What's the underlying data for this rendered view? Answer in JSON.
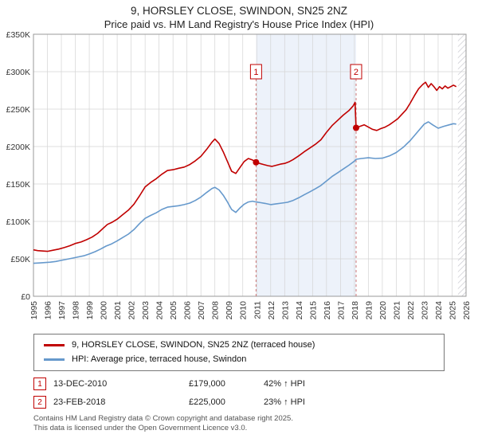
{
  "title": "9, HORSLEY CLOSE, SWINDON, SN25 2NZ",
  "subtitle": "Price paid vs. HM Land Registry's House Price Index (HPI)",
  "chart_data": {
    "type": "line",
    "x_range": [
      1995,
      2026
    ],
    "y_range": [
      0,
      350000
    ],
    "grid": true,
    "legend_position": "bottom",
    "y_ticks": [
      "£0",
      "£50K",
      "£100K",
      "£150K",
      "£200K",
      "£250K",
      "£300K",
      "£350K"
    ],
    "x_ticks": [
      1995,
      1996,
      1997,
      1998,
      1999,
      2000,
      2001,
      2002,
      2003,
      2004,
      2005,
      2006,
      2007,
      2008,
      2009,
      2010,
      2011,
      2012,
      2013,
      2014,
      2015,
      2016,
      2017,
      2018,
      2019,
      2020,
      2021,
      2022,
      2023,
      2024,
      2025,
      2026
    ],
    "series": [
      {
        "name": "9, HORSLEY CLOSE, SWINDON, SN25 2NZ (terraced house)",
        "color": "#c00000",
        "points": [
          [
            1995.0,
            62000
          ],
          [
            1995.3,
            61000
          ],
          [
            1995.6,
            60500
          ],
          [
            1996.0,
            60000
          ],
          [
            1996.4,
            61500
          ],
          [
            1996.8,
            63000
          ],
          [
            1997.2,
            65000
          ],
          [
            1997.6,
            67500
          ],
          [
            1998.0,
            70500
          ],
          [
            1998.4,
            72500
          ],
          [
            1998.8,
            75500
          ],
          [
            1999.2,
            79000
          ],
          [
            1999.6,
            84000
          ],
          [
            2000.0,
            91000
          ],
          [
            2000.3,
            96000
          ],
          [
            2000.6,
            98500
          ],
          [
            2001.0,
            103000
          ],
          [
            2001.4,
            109000
          ],
          [
            2001.8,
            115000
          ],
          [
            2002.2,
            123000
          ],
          [
            2002.6,
            134000
          ],
          [
            2003.0,
            146000
          ],
          [
            2003.4,
            152000
          ],
          [
            2003.8,
            157000
          ],
          [
            2004.2,
            163000
          ],
          [
            2004.6,
            168000
          ],
          [
            2005.0,
            169000
          ],
          [
            2005.4,
            171000
          ],
          [
            2005.8,
            172500
          ],
          [
            2006.2,
            176000
          ],
          [
            2006.6,
            181000
          ],
          [
            2007.0,
            187000
          ],
          [
            2007.4,
            196000
          ],
          [
            2007.8,
            206000
          ],
          [
            2008.0,
            210000
          ],
          [
            2008.3,
            204000
          ],
          [
            2008.6,
            193000
          ],
          [
            2008.9,
            180000
          ],
          [
            2009.2,
            167000
          ],
          [
            2009.5,
            164000
          ],
          [
            2009.8,
            172000
          ],
          [
            2010.1,
            180000
          ],
          [
            2010.4,
            184000
          ],
          [
            2010.7,
            182000
          ],
          [
            2010.95,
            179000
          ],
          [
            2011.2,
            177500
          ],
          [
            2011.5,
            176000
          ],
          [
            2011.8,
            174500
          ],
          [
            2012.1,
            173500
          ],
          [
            2012.4,
            175000
          ],
          [
            2012.7,
            176500
          ],
          [
            2013.0,
            177500
          ],
          [
            2013.3,
            179500
          ],
          [
            2013.6,
            182500
          ],
          [
            2014.0,
            187500
          ],
          [
            2014.4,
            193000
          ],
          [
            2014.8,
            198000
          ],
          [
            2015.2,
            203000
          ],
          [
            2015.6,
            209000
          ],
          [
            2016.0,
            219000
          ],
          [
            2016.4,
            228000
          ],
          [
            2016.8,
            235000
          ],
          [
            2017.2,
            242000
          ],
          [
            2017.6,
            248000
          ],
          [
            2017.9,
            254000
          ],
          [
            2018.05,
            259000
          ],
          [
            2018.12,
            225000
          ],
          [
            2018.4,
            227000
          ],
          [
            2018.7,
            229000
          ],
          [
            2019.0,
            226000
          ],
          [
            2019.3,
            223000
          ],
          [
            2019.6,
            221500
          ],
          [
            2019.9,
            224000
          ],
          [
            2020.2,
            226000
          ],
          [
            2020.5,
            229000
          ],
          [
            2020.8,
            233000
          ],
          [
            2021.1,
            237000
          ],
          [
            2021.4,
            243000
          ],
          [
            2021.7,
            249000
          ],
          [
            2022.0,
            258000
          ],
          [
            2022.3,
            268000
          ],
          [
            2022.6,
            277000
          ],
          [
            2022.9,
            283000
          ],
          [
            2023.1,
            286000
          ],
          [
            2023.3,
            279000
          ],
          [
            2023.5,
            284000
          ],
          [
            2023.7,
            280000
          ],
          [
            2023.9,
            275000
          ],
          [
            2024.1,
            280000
          ],
          [
            2024.3,
            277000
          ],
          [
            2024.5,
            281000
          ],
          [
            2024.7,
            278000
          ],
          [
            2024.9,
            280000
          ],
          [
            2025.1,
            282000
          ],
          [
            2025.3,
            280000
          ]
        ]
      },
      {
        "name": "HPI: Average price, terraced house, Swindon",
        "color": "#6699cc",
        "points": [
          [
            1995.0,
            44000
          ],
          [
            1995.4,
            44500
          ],
          [
            1995.8,
            45000
          ],
          [
            1996.2,
            45500
          ],
          [
            1996.6,
            46500
          ],
          [
            1997.0,
            48000
          ],
          [
            1997.4,
            49500
          ],
          [
            1997.8,
            51000
          ],
          [
            1998.2,
            52500
          ],
          [
            1998.6,
            54000
          ],
          [
            1999.0,
            56500
          ],
          [
            1999.4,
            59500
          ],
          [
            1999.8,
            63000
          ],
          [
            2000.2,
            67000
          ],
          [
            2000.6,
            70000
          ],
          [
            2001.0,
            74000
          ],
          [
            2001.4,
            78500
          ],
          [
            2001.8,
            83000
          ],
          [
            2002.2,
            89000
          ],
          [
            2002.6,
            97000
          ],
          [
            2003.0,
            104000
          ],
          [
            2003.4,
            108000
          ],
          [
            2003.8,
            111500
          ],
          [
            2004.2,
            116000
          ],
          [
            2004.6,
            119000
          ],
          [
            2005.0,
            120000
          ],
          [
            2005.4,
            121000
          ],
          [
            2005.8,
            122500
          ],
          [
            2006.2,
            124500
          ],
          [
            2006.6,
            128000
          ],
          [
            2007.0,
            132500
          ],
          [
            2007.4,
            138500
          ],
          [
            2007.8,
            144000
          ],
          [
            2008.0,
            145500
          ],
          [
            2008.3,
            142000
          ],
          [
            2008.6,
            135000
          ],
          [
            2008.9,
            126000
          ],
          [
            2009.2,
            116000
          ],
          [
            2009.5,
            112000
          ],
          [
            2009.8,
            118000
          ],
          [
            2010.1,
            123000
          ],
          [
            2010.4,
            126000
          ],
          [
            2010.7,
            127000
          ],
          [
            2010.95,
            126000
          ],
          [
            2011.3,
            125000
          ],
          [
            2011.6,
            124000
          ],
          [
            2012.0,
            122500
          ],
          [
            2012.4,
            123500
          ],
          [
            2012.8,
            124500
          ],
          [
            2013.2,
            125500
          ],
          [
            2013.6,
            128000
          ],
          [
            2014.0,
            131500
          ],
          [
            2014.4,
            135500
          ],
          [
            2014.8,
            139500
          ],
          [
            2015.2,
            143500
          ],
          [
            2015.6,
            148000
          ],
          [
            2016.0,
            154000
          ],
          [
            2016.4,
            160000
          ],
          [
            2016.8,
            165000
          ],
          [
            2017.2,
            170000
          ],
          [
            2017.6,
            175000
          ],
          [
            2018.0,
            180500
          ],
          [
            2018.12,
            183000
          ],
          [
            2018.5,
            184000
          ],
          [
            2019.0,
            185000
          ],
          [
            2019.5,
            184000
          ],
          [
            2020.0,
            184500
          ],
          [
            2020.5,
            187500
          ],
          [
            2021.0,
            192000
          ],
          [
            2021.5,
            199000
          ],
          [
            2022.0,
            208000
          ],
          [
            2022.5,
            219000
          ],
          [
            2023.0,
            230000
          ],
          [
            2023.3,
            233000
          ],
          [
            2023.6,
            229000
          ],
          [
            2024.0,
            224500
          ],
          [
            2024.4,
            227000
          ],
          [
            2024.8,
            229000
          ],
          [
            2025.1,
            230500
          ],
          [
            2025.3,
            230000
          ]
        ]
      }
    ],
    "markers": [
      {
        "label": "1",
        "x": 2010.95,
        "y": 179000
      },
      {
        "label": "2",
        "x": 2018.12,
        "y": 225000
      }
    ],
    "shaded_region": {
      "from": 2010.95,
      "to": 2018.12,
      "color": "#edf2fa"
    },
    "hatched_region": {
      "from": 2025.42,
      "to": 2026
    },
    "marker_line_color": "#cc7777",
    "marker_box_color": "#c00000"
  },
  "legend": {
    "items": [
      {
        "label": "9, HORSLEY CLOSE, SWINDON, SN25 2NZ (terraced house)",
        "color": "#c00000"
      },
      {
        "label": "HPI: Average price, terraced house, Swindon",
        "color": "#6699cc"
      }
    ]
  },
  "annotations": [
    {
      "num": "1",
      "date": "13-DEC-2010",
      "price": "£179,000",
      "hpi": "42% ↑ HPI"
    },
    {
      "num": "2",
      "date": "23-FEB-2018",
      "price": "£225,000",
      "hpi": "23% ↑ HPI"
    }
  ],
  "footer": {
    "line1": "Contains HM Land Registry data © Crown copyright and database right 2025.",
    "line2": "This data is licensed under the Open Government Licence v3.0."
  }
}
